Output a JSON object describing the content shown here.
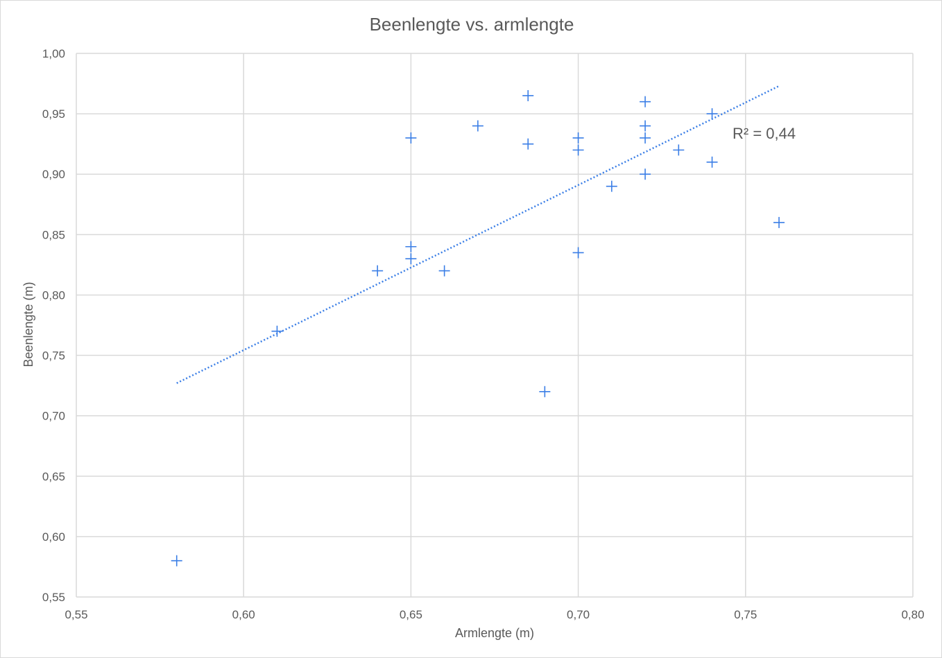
{
  "chart_data": {
    "type": "scatter",
    "title": "Beenlengte vs. armlengte",
    "xlabel": "Armlengte (m)",
    "ylabel": "Beenlengte (m)",
    "xlim": [
      0.55,
      0.8
    ],
    "ylim": [
      0.55,
      1.0
    ],
    "x_ticks": [
      0.55,
      0.6,
      0.65,
      0.7,
      0.75,
      0.8
    ],
    "y_ticks": [
      0.55,
      0.6,
      0.65,
      0.7,
      0.75,
      0.8,
      0.85,
      0.9,
      0.95,
      1.0
    ],
    "x_tick_labels": [
      "0,55",
      "0,60",
      "0,65",
      "0,70",
      "0,75",
      "0,80"
    ],
    "y_tick_labels": [
      "0,55",
      "0,60",
      "0,65",
      "0,70",
      "0,75",
      "0,80",
      "0,85",
      "0,90",
      "0,95",
      "1,00"
    ],
    "grid": true,
    "series": [
      {
        "name": "Beenlengte",
        "marker": "plus",
        "color": "#3a7ee6",
        "points": [
          {
            "x": 0.58,
            "y": 0.58
          },
          {
            "x": 0.61,
            "y": 0.77
          },
          {
            "x": 0.64,
            "y": 0.82
          },
          {
            "x": 0.65,
            "y": 0.84
          },
          {
            "x": 0.65,
            "y": 0.83
          },
          {
            "x": 0.65,
            "y": 0.93
          },
          {
            "x": 0.66,
            "y": 0.82
          },
          {
            "x": 0.67,
            "y": 0.94
          },
          {
            "x": 0.685,
            "y": 0.965
          },
          {
            "x": 0.685,
            "y": 0.925
          },
          {
            "x": 0.69,
            "y": 0.72
          },
          {
            "x": 0.7,
            "y": 0.93
          },
          {
            "x": 0.7,
            "y": 0.92
          },
          {
            "x": 0.7,
            "y": 0.835
          },
          {
            "x": 0.71,
            "y": 0.89
          },
          {
            "x": 0.72,
            "y": 0.96
          },
          {
            "x": 0.72,
            "y": 0.94
          },
          {
            "x": 0.72,
            "y": 0.93
          },
          {
            "x": 0.72,
            "y": 0.9
          },
          {
            "x": 0.73,
            "y": 0.92
          },
          {
            "x": 0.74,
            "y": 0.95
          },
          {
            "x": 0.74,
            "y": 0.91
          },
          {
            "x": 0.76,
            "y": 0.86
          }
        ]
      }
    ],
    "trendline": {
      "type": "linear",
      "style": "dotted",
      "color": "#3a7ee6",
      "x_start": 0.58,
      "y_start": 0.727,
      "x_end": 0.76,
      "y_end": 0.973,
      "r_squared_label": "R² = 0,44"
    }
  }
}
